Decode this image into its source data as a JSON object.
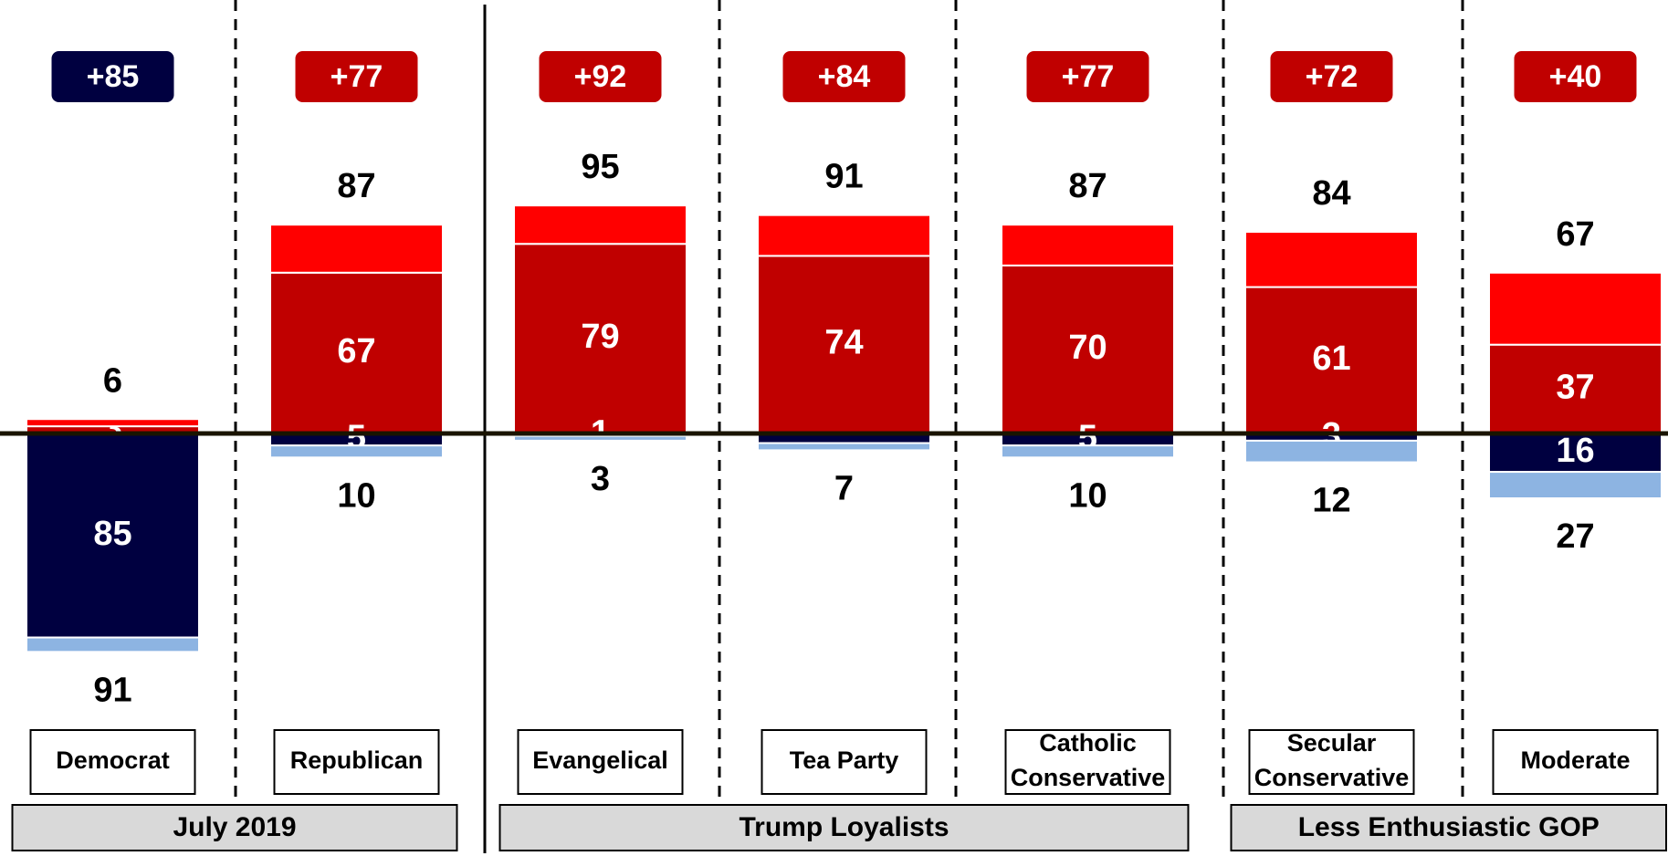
{
  "chart_data": {
    "type": "diverging_stacked_bar",
    "categories": [
      "Democrat",
      "Republican",
      "Evangelical",
      "Tea Party",
      "Catholic Conservative",
      "Secular Conservative",
      "Moderate"
    ],
    "groups": [
      {
        "label": "July 2019",
        "members": [
          "Democrat",
          "Republican"
        ]
      },
      {
        "label": "Trump Loyalists",
        "members": [
          "Evangelical",
          "Tea Party",
          "Catholic Conservative"
        ]
      },
      {
        "label": "Less Enthusiastic GOP",
        "members": [
          "Secular Conservative",
          "Moderate"
        ]
      }
    ],
    "net_labels": [
      "+85",
      "+77",
      "+92",
      "+84",
      "+77",
      "+72",
      "+40"
    ],
    "net_colors": [
      "#000040",
      "#c00000",
      "#c00000",
      "#c00000",
      "#c00000",
      "#c00000",
      "#c00000"
    ],
    "positive_totals": [
      6,
      87,
      95,
      91,
      87,
      84,
      67
    ],
    "negative_totals": [
      91,
      10,
      3,
      7,
      10,
      12,
      27
    ],
    "series": [
      {
        "color": "#c00000",
        "side": "positive",
        "values": [
          3,
          67,
          79,
          74,
          70,
          61,
          37
        ],
        "value_labels": [
          "3",
          "67",
          "79",
          "74",
          "70",
          "61",
          "37"
        ]
      },
      {
        "color": "#ff0000",
        "side": "positive",
        "values": [
          3,
          20,
          16,
          17,
          17,
          23,
          30
        ]
      },
      {
        "color": "#000040",
        "side": "negative",
        "values": [
          85,
          5,
          1,
          4,
          5,
          3,
          16
        ],
        "value_labels": [
          "85",
          "5",
          "1",
          null,
          "5",
          "3",
          "16"
        ]
      },
      {
        "color": "#8db4e2",
        "side": "negative",
        "values": [
          6,
          5,
          2,
          3,
          5,
          9,
          11
        ]
      }
    ]
  }
}
